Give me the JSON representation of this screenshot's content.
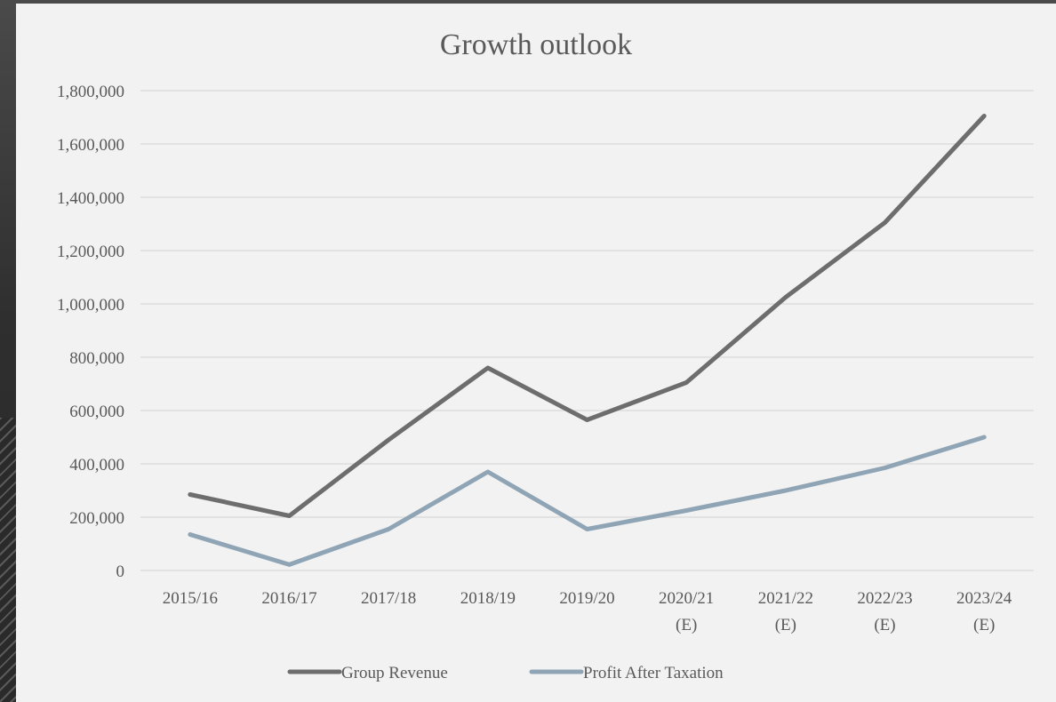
{
  "chart_data": {
    "type": "line",
    "title": "Growth outlook",
    "categories": [
      [
        "2015/16"
      ],
      [
        "2016/17"
      ],
      [
        "2017/18"
      ],
      [
        "2018/19"
      ],
      [
        "2019/20"
      ],
      [
        "2020/21",
        "(E)"
      ],
      [
        "2021/22",
        "(E)"
      ],
      [
        "2022/23",
        "(E)"
      ],
      [
        "2023/24",
        "(E)"
      ]
    ],
    "ylim": [
      0,
      1800000
    ],
    "yticks": [
      0,
      200000,
      400000,
      600000,
      800000,
      1000000,
      1200000,
      1400000,
      1600000,
      1800000
    ],
    "ytick_labels": [
      "0",
      "200,000",
      "400,000",
      "600,000",
      "800,000",
      "1,000,000",
      "1,200,000",
      "1,400,000",
      "1,600,000",
      "1,800,000"
    ],
    "grid": true,
    "legend_position": "bottom",
    "series": [
      {
        "name": "Group Revenue",
        "color": "#6d6d6d",
        "values": [
          285000,
          205000,
          490000,
          760000,
          565000,
          705000,
          1025000,
          1305000,
          1705000
        ]
      },
      {
        "name": "Profit After Taxation",
        "color": "#8fa5b5",
        "values": [
          135000,
          22000,
          155000,
          370000,
          155000,
          225000,
          300000,
          385000,
          500000
        ]
      }
    ]
  }
}
